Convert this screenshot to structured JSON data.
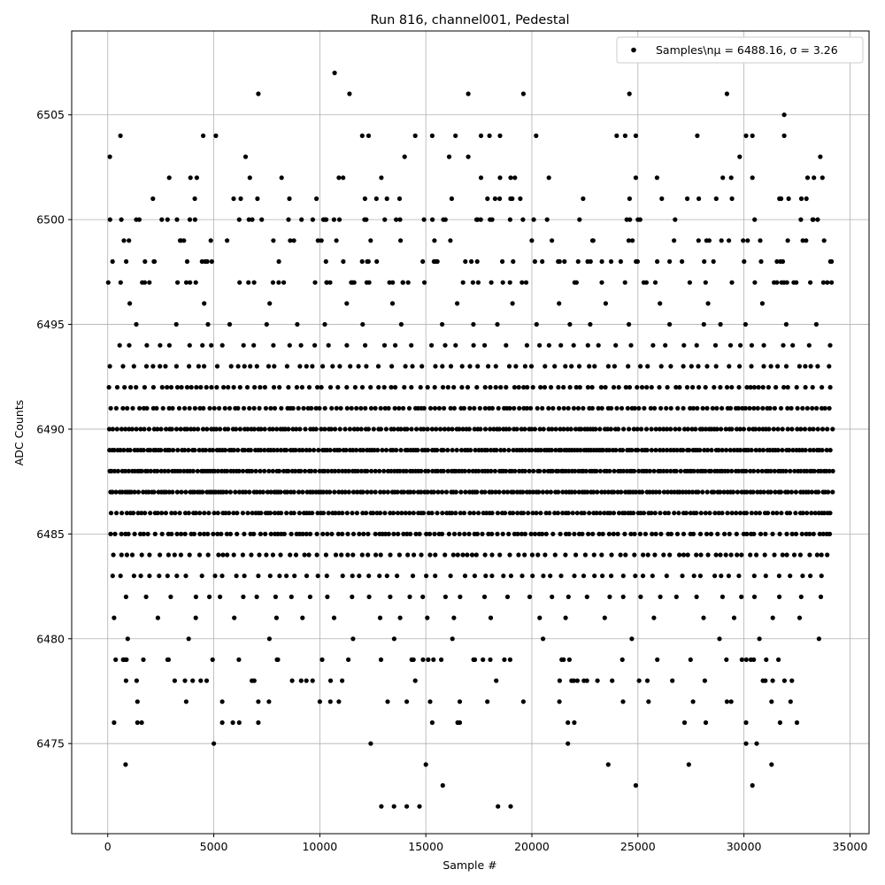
{
  "chart_data": {
    "type": "scatter",
    "title": "Run 816, channel001, Pedestal",
    "xlabel": "Sample #",
    "ylabel": "ADC Counts",
    "xlim": [
      -1700,
      35900
    ],
    "ylim": [
      6470.7,
      6509.0
    ],
    "x_ticks": [
      0,
      5000,
      10000,
      15000,
      20000,
      25000,
      30000,
      35000
    ],
    "x_tick_labels": [
      "0",
      "5000",
      "10000",
      "15000",
      "20000",
      "25000",
      "30000",
      "35000"
    ],
    "y_ticks": [
      6475,
      6480,
      6485,
      6490,
      6495,
      6500,
      6505
    ],
    "y_tick_labels": [
      "6475",
      "6480",
      "6485",
      "6490",
      "6495",
      "6500",
      "6505"
    ],
    "grid": true,
    "legend_position": "top-right",
    "legend_label": "Samples\\nμ = 6488.16, σ = 3.26",
    "marker_color": "#000000",
    "n_samples": 34200,
    "mean": 6488.16,
    "sigma": 3.26,
    "series": [
      {
        "name": "Samples\\nμ = 6488.16, σ = 3.26",
        "marker": "circle",
        "dense_rows": [
          6480,
          6481,
          6482,
          6483,
          6484,
          6485,
          6486,
          6487,
          6488,
          6489,
          6490,
          6491,
          6492,
          6493,
          6494,
          6495,
          6496
        ],
        "outliers": [
          {
            "x": 10700,
            "y": 6507
          },
          {
            "x": 7100,
            "y": 6506
          },
          {
            "x": 11400,
            "y": 6506
          },
          {
            "x": 17000,
            "y": 6506
          },
          {
            "x": 19600,
            "y": 6506
          },
          {
            "x": 24600,
            "y": 6506
          },
          {
            "x": 29200,
            "y": 6506
          },
          {
            "x": 31900,
            "y": 6505
          },
          {
            "x": 100,
            "y": 6503
          },
          {
            "x": 6500,
            "y": 6503
          },
          {
            "x": 14000,
            "y": 6503
          },
          {
            "x": 16100,
            "y": 6503
          },
          {
            "x": 17000,
            "y": 6503
          },
          {
            "x": 29800,
            "y": 6503
          },
          {
            "x": 33600,
            "y": 6503
          },
          {
            "x": 600,
            "y": 6504
          },
          {
            "x": 4500,
            "y": 6504
          },
          {
            "x": 5100,
            "y": 6504
          },
          {
            "x": 12000,
            "y": 6504
          },
          {
            "x": 12300,
            "y": 6504
          },
          {
            "x": 14500,
            "y": 6504
          },
          {
            "x": 15300,
            "y": 6504
          },
          {
            "x": 16400,
            "y": 6504
          },
          {
            "x": 17600,
            "y": 6504
          },
          {
            "x": 18000,
            "y": 6504
          },
          {
            "x": 18500,
            "y": 6504
          },
          {
            "x": 20200,
            "y": 6504
          },
          {
            "x": 24000,
            "y": 6504
          },
          {
            "x": 24400,
            "y": 6504
          },
          {
            "x": 24900,
            "y": 6504
          },
          {
            "x": 27800,
            "y": 6504
          },
          {
            "x": 30100,
            "y": 6504
          },
          {
            "x": 30400,
            "y": 6504
          },
          {
            "x": 31900,
            "y": 6504
          },
          {
            "x": 2900,
            "y": 6502
          },
          {
            "x": 3900,
            "y": 6502
          },
          {
            "x": 4200,
            "y": 6502
          },
          {
            "x": 6700,
            "y": 6502
          },
          {
            "x": 8200,
            "y": 6502
          },
          {
            "x": 10900,
            "y": 6502
          },
          {
            "x": 11100,
            "y": 6502
          },
          {
            "x": 12900,
            "y": 6502
          },
          {
            "x": 17600,
            "y": 6502
          },
          {
            "x": 18500,
            "y": 6502
          },
          {
            "x": 19000,
            "y": 6502
          },
          {
            "x": 19200,
            "y": 6502
          },
          {
            "x": 20800,
            "y": 6502
          },
          {
            "x": 24900,
            "y": 6502
          },
          {
            "x": 25900,
            "y": 6502
          },
          {
            "x": 29000,
            "y": 6502
          },
          {
            "x": 29400,
            "y": 6502
          },
          {
            "x": 30400,
            "y": 6502
          },
          {
            "x": 33000,
            "y": 6502
          },
          {
            "x": 33300,
            "y": 6502
          },
          {
            "x": 33700,
            "y": 6502
          },
          {
            "x": 840,
            "y": 6474
          },
          {
            "x": 5000,
            "y": 6475
          },
          {
            "x": 12400,
            "y": 6475
          },
          {
            "x": 15000,
            "y": 6474
          },
          {
            "x": 15800,
            "y": 6473
          },
          {
            "x": 21700,
            "y": 6475
          },
          {
            "x": 23600,
            "y": 6474
          },
          {
            "x": 24900,
            "y": 6473
          },
          {
            "x": 27400,
            "y": 6474
          },
          {
            "x": 30100,
            "y": 6475
          },
          {
            "x": 30400,
            "y": 6473
          },
          {
            "x": 30600,
            "y": 6475
          },
          {
            "x": 31300,
            "y": 6474
          },
          {
            "x": 12900,
            "y": 6472
          },
          {
            "x": 13500,
            "y": 6472
          },
          {
            "x": 14100,
            "y": 6472
          },
          {
            "x": 14700,
            "y": 6472
          },
          {
            "x": 18400,
            "y": 6472
          },
          {
            "x": 19000,
            "y": 6472
          },
          {
            "x": 300,
            "y": 6476
          },
          {
            "x": 1400,
            "y": 6476
          },
          {
            "x": 1600,
            "y": 6476
          },
          {
            "x": 5400,
            "y": 6476
          },
          {
            "x": 5900,
            "y": 6476
          },
          {
            "x": 6200,
            "y": 6476
          },
          {
            "x": 7100,
            "y": 6476
          },
          {
            "x": 15300,
            "y": 6476
          },
          {
            "x": 16500,
            "y": 6476
          },
          {
            "x": 16600,
            "y": 6476
          },
          {
            "x": 21700,
            "y": 6476
          },
          {
            "x": 22000,
            "y": 6476
          },
          {
            "x": 27200,
            "y": 6476
          },
          {
            "x": 28200,
            "y": 6476
          },
          {
            "x": 30100,
            "y": 6476
          },
          {
            "x": 31700,
            "y": 6476
          },
          {
            "x": 32500,
            "y": 6476
          },
          {
            "x": 1400,
            "y": 6477
          },
          {
            "x": 3700,
            "y": 6477
          },
          {
            "x": 5400,
            "y": 6477
          },
          {
            "x": 7100,
            "y": 6477
          },
          {
            "x": 7600,
            "y": 6477
          },
          {
            "x": 10000,
            "y": 6477
          },
          {
            "x": 10500,
            "y": 6477
          },
          {
            "x": 10900,
            "y": 6477
          },
          {
            "x": 13200,
            "y": 6477
          },
          {
            "x": 14100,
            "y": 6477
          },
          {
            "x": 15200,
            "y": 6477
          },
          {
            "x": 16600,
            "y": 6477
          },
          {
            "x": 17900,
            "y": 6477
          },
          {
            "x": 19600,
            "y": 6477
          },
          {
            "x": 21300,
            "y": 6477
          },
          {
            "x": 24300,
            "y": 6477
          },
          {
            "x": 25500,
            "y": 6477
          },
          {
            "x": 27600,
            "y": 6477
          },
          {
            "x": 29200,
            "y": 6477
          },
          {
            "x": 29400,
            "y": 6477
          },
          {
            "x": 31300,
            "y": 6477
          },
          {
            "x": 32200,
            "y": 6477
          }
        ]
      }
    ]
  }
}
